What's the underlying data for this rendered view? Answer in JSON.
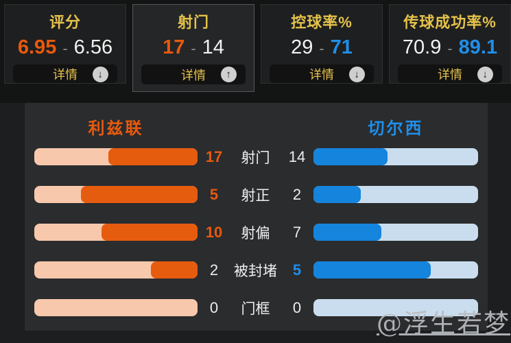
{
  "ui": {
    "separator": "-",
    "details_label": "详情"
  },
  "colors": {
    "home_accent": "#e8590e",
    "home_fill": "#e65c0f",
    "home_track": "#f8c8ac",
    "away_accent": "#1f8fea",
    "away_fill": "#1584dd",
    "away_track": "#c9ddee",
    "title_yellow": "#e5c24b",
    "panel_bg": "#2a2c2e"
  },
  "tabs": [
    {
      "label": "评分",
      "home": "6.95",
      "away": "6.56",
      "winner": "home",
      "arrow": "down",
      "selected": false
    },
    {
      "label": "射门",
      "home": "17",
      "away": "14",
      "winner": "home",
      "arrow": "up",
      "selected": true
    },
    {
      "label": "控球率%",
      "home": "29",
      "away": "71",
      "winner": "away",
      "arrow": "down",
      "selected": false
    },
    {
      "label": "传球成功率%",
      "home": "70.9",
      "away": "89.1",
      "winner": "away",
      "arrow": "down",
      "selected": false
    }
  ],
  "panel": {
    "home_team": "利兹联",
    "away_team": "切尔西"
  },
  "chart_data": {
    "type": "bar",
    "orientation": "mirrored-horizontal",
    "title": "射门",
    "legend_position": "top",
    "teams": [
      "利兹联",
      "切尔西"
    ],
    "categories": [
      "射门",
      "射正",
      "射偏",
      "被封堵",
      "门框"
    ],
    "series": [
      {
        "name": "利兹联",
        "values": [
          17,
          5,
          10,
          2,
          0
        ]
      },
      {
        "name": "切尔西",
        "values": [
          14,
          2,
          7,
          5,
          0
        ]
      }
    ],
    "bar_fill_rule": "fill fraction = value / (home + away); 0 when both are 0"
  },
  "watermark": "@浮生若梦"
}
